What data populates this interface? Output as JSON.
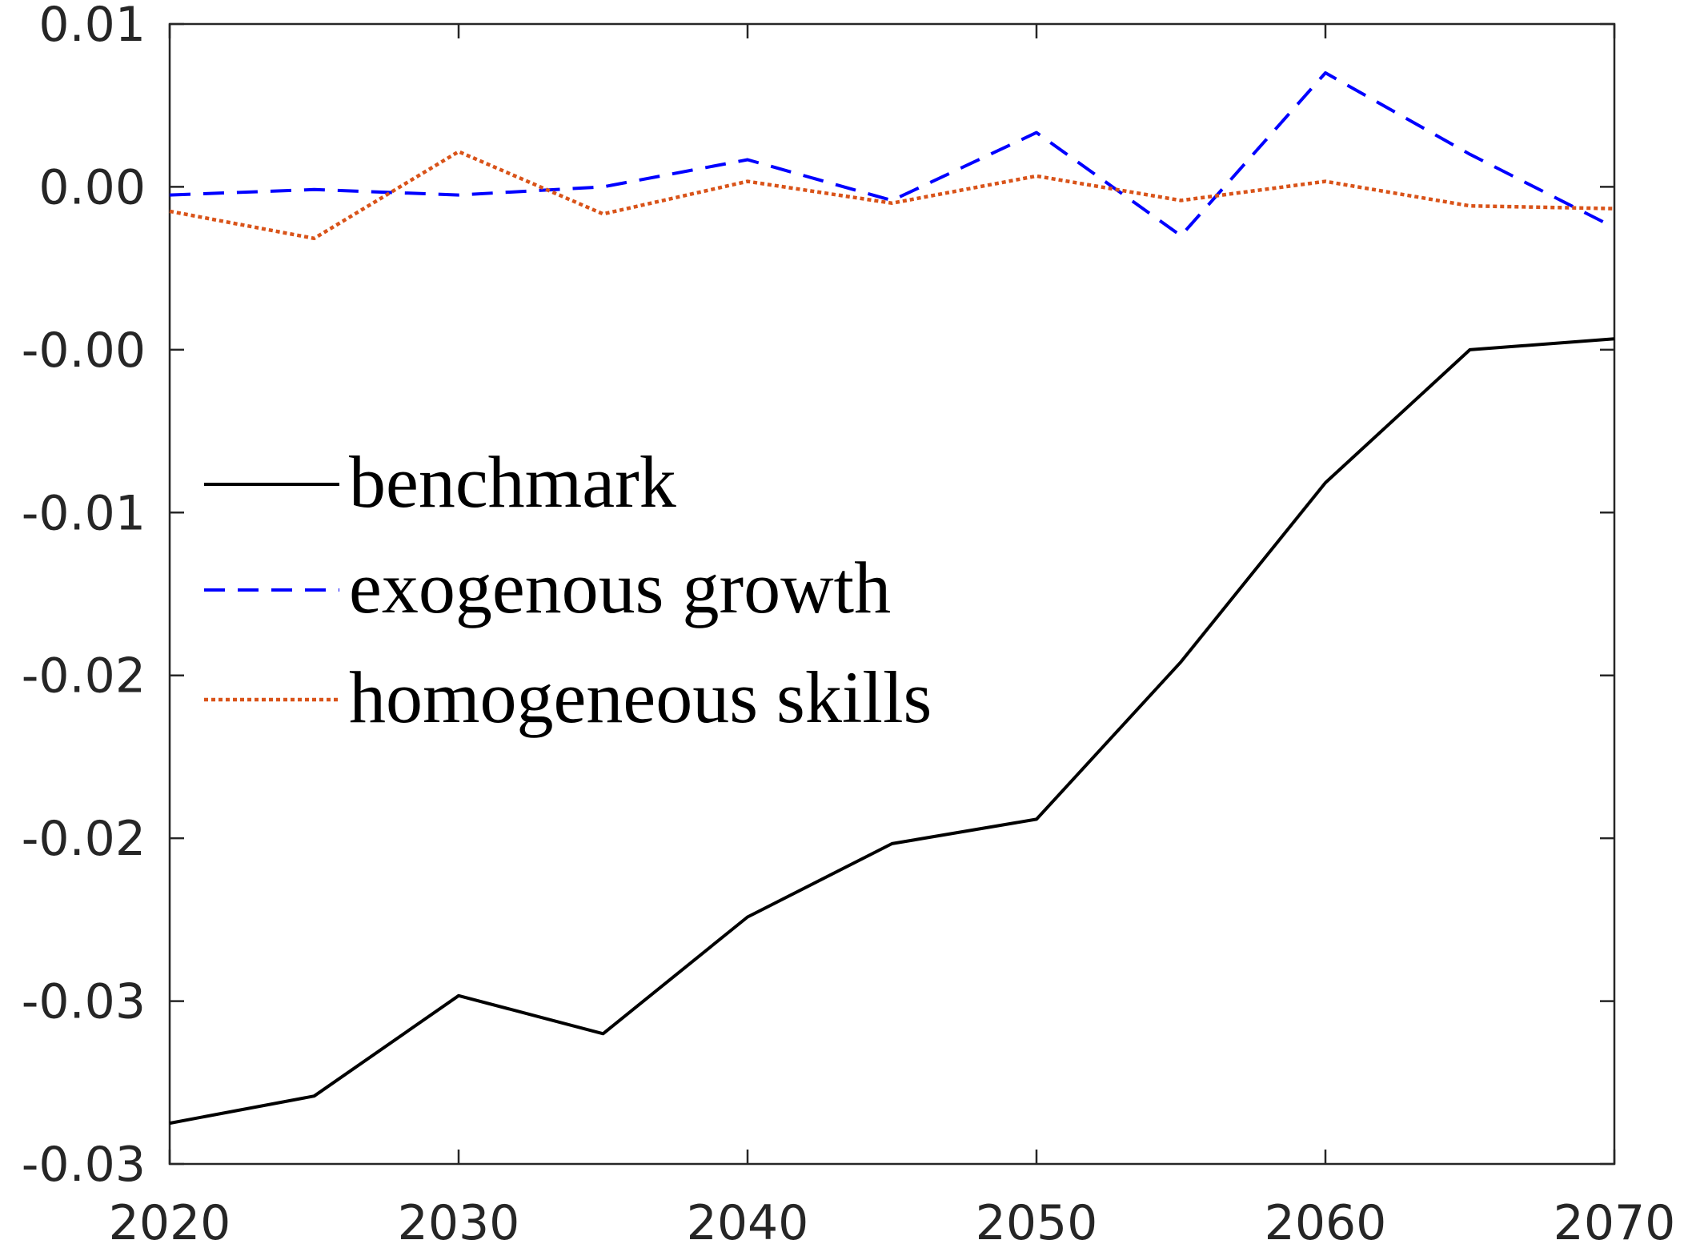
{
  "chart_data": {
    "type": "line",
    "x": [
      2020,
      2025,
      2030,
      2035,
      2040,
      2045,
      2050,
      2055,
      2060,
      2065,
      2070
    ],
    "xlim": [
      2020,
      2070
    ],
    "xticks": [
      2020,
      2030,
      2040,
      2050,
      2060,
      2070
    ],
    "ylim": [
      -0.034,
      0.008
    ],
    "yticks": [
      {
        "value": -0.034,
        "label": "-0.03"
      },
      {
        "value": -0.028,
        "label": "-0.03"
      },
      {
        "value": -0.022,
        "label": "-0.02"
      },
      {
        "value": -0.016,
        "label": "-0.02"
      },
      {
        "value": -0.01,
        "label": "-0.01"
      },
      {
        "value": -0.004,
        "label": "-0.00"
      },
      {
        "value": 0.002,
        "label": "0.00"
      },
      {
        "value": 0.008,
        "label": "0.01"
      }
    ],
    "grid": false,
    "legend": "left",
    "series": [
      {
        "name": "benchmark",
        "color": "#000000",
        "dash": "solid",
        "values": [
          -0.0325,
          -0.0315,
          -0.0278,
          -0.0292,
          -0.0249,
          -0.0222,
          -0.0213,
          -0.0155,
          -0.0089,
          -0.004,
          -0.0036
        ]
      },
      {
        "name": "exogenous growth",
        "color": "#0000ff",
        "dash": "dashed",
        "values": [
          0.0017,
          0.0019,
          0.0017,
          0.002,
          0.003,
          0.0015,
          0.004,
          0.0002,
          0.0062,
          0.0032,
          0.0005
        ]
      },
      {
        "name": "homogeneous skills",
        "color": "#d95319",
        "dash": "dotted",
        "values": [
          0.0011,
          0.0001,
          0.0033,
          0.001,
          0.0022,
          0.0014,
          0.0024,
          0.0015,
          0.0022,
          0.0013,
          0.0012
        ]
      }
    ]
  }
}
